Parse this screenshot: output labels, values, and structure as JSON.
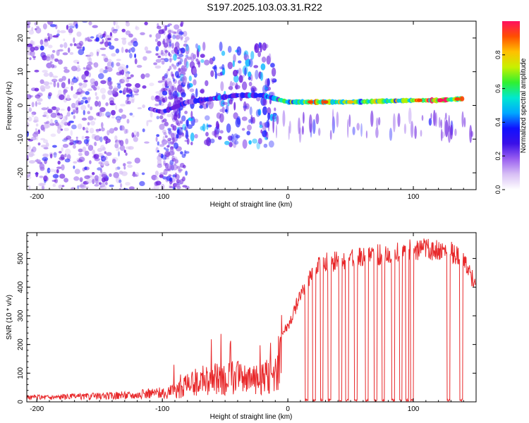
{
  "title": "S197.2025.103.03.31.R22",
  "colors": {
    "series": "#e8282a",
    "frame": "#000000",
    "colormap": [
      "#f2f2f2",
      "#d9c4f5",
      "#a070ee",
      "#6a1fe0",
      "#2020ff",
      "#00b4ff",
      "#00e8c0",
      "#40f040",
      "#b0f000",
      "#ffb000",
      "#ff4000",
      "#ff1060"
    ]
  },
  "chart_data": [
    {
      "type": "heatmap",
      "xlabel": "Height of straight line (km)",
      "ylabel": "Frequency (Hz)",
      "xlim": [
        -208,
        150
      ],
      "ylim": [
        -25,
        25
      ],
      "x_ticks": [
        -200,
        -100,
        0,
        100
      ],
      "x_tick_labels": [
        "-200",
        "-100",
        "0",
        "100"
      ],
      "y_ticks": [
        -20,
        -10,
        0,
        10,
        20
      ],
      "y_tick_labels": [
        "-20",
        "-10",
        "0",
        "10",
        "20"
      ],
      "colorbar": {
        "label": "Normalized spectral amplitude",
        "range": [
          0,
          1
        ],
        "ticks": [
          0.0,
          0.2,
          0.4,
          0.6,
          0.8
        ],
        "tick_labels": [
          "0.0",
          "0.2",
          "0.4",
          "0.6",
          "0.8"
        ]
      },
      "ridge": [
        {
          "x": -110,
          "freq": -1,
          "amp": 0.3
        },
        {
          "x": -100,
          "freq": -2,
          "amp": 0.25
        },
        {
          "x": -80,
          "freq": 1,
          "amp": 0.3
        },
        {
          "x": -60,
          "freq": 2,
          "amp": 0.35
        },
        {
          "x": -40,
          "freq": 3,
          "amp": 0.35
        },
        {
          "x": -20,
          "freq": 3,
          "amp": 0.4
        },
        {
          "x": 0,
          "freq": 1,
          "amp": 0.55
        },
        {
          "x": 20,
          "freq": 1,
          "amp": 0.7
        },
        {
          "x": 50,
          "freq": 1,
          "amp": 0.6
        },
        {
          "x": 100,
          "freq": 1.5,
          "amp": 0.7
        },
        {
          "x": 120,
          "freq": 1.5,
          "amp": 0.9
        },
        {
          "x": 140,
          "freq": 2,
          "amp": 0.75
        }
      ]
    },
    {
      "type": "line",
      "xlabel": "Height of straight line (km)",
      "ylabel": "SNR (10 * v/v)",
      "xlim": [
        -208,
        150
      ],
      "ylim": [
        0,
        590
      ],
      "x_ticks": [
        -200,
        -100,
        0,
        100
      ],
      "x_tick_labels": [
        "-200",
        "-100",
        "0",
        "100"
      ],
      "y_ticks": [
        0,
        100,
        200,
        300,
        400,
        500
      ],
      "y_tick_labels": [
        "0",
        "100",
        "200",
        "300",
        "400",
        "500"
      ],
      "trend": {
        "x": [
          -208,
          -150,
          -120,
          -100,
          -90,
          -80,
          -70,
          -60,
          -50,
          -40,
          -30,
          -20,
          -10,
          -5,
          0,
          5,
          10,
          15,
          20,
          25,
          30,
          40,
          50,
          60,
          70,
          80,
          90,
          100,
          110,
          120,
          130,
          140,
          150
        ],
        "y": [
          15,
          20,
          25,
          35,
          50,
          75,
          95,
          105,
          110,
          110,
          100,
          110,
          130,
          260,
          280,
          330,
          400,
          440,
          470,
          500,
          510,
          515,
          520,
          530,
          540,
          545,
          555,
          560,
          560,
          555,
          550,
          520,
          420
        ]
      },
      "dropouts": [
        15,
        21,
        27,
        33,
        42,
        47,
        54,
        63,
        70,
        76,
        84,
        90,
        95,
        99,
        128,
        138
      ]
    }
  ]
}
